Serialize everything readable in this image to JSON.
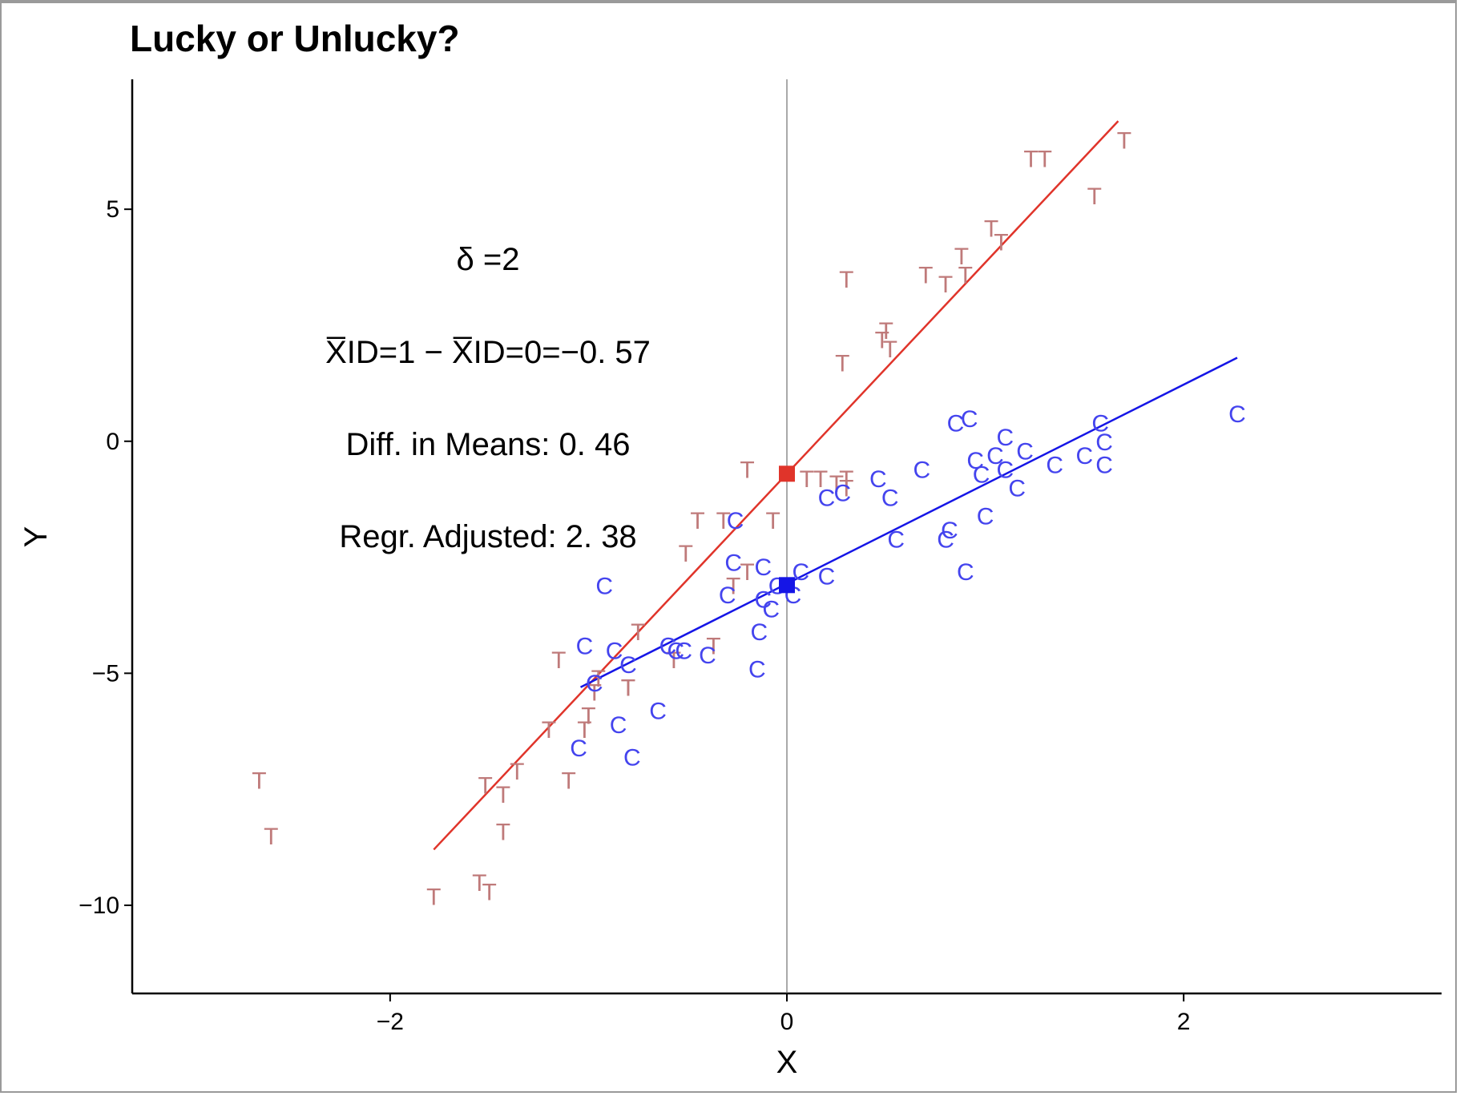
{
  "chart_data": {
    "type": "scatter",
    "title": "Lucky or Unlucky?",
    "xlabel": "X",
    "ylabel": "Y",
    "xlim": [
      -3.3,
      3.3
    ],
    "ylim": [
      -11.9,
      7.8
    ],
    "xticks": [
      -2,
      0,
      2
    ],
    "xtick_labels": [
      "−2",
      "0",
      "2"
    ],
    "yticks": [
      -10,
      -5,
      0,
      5
    ],
    "ytick_labels": [
      "−10",
      "−5",
      "0",
      "5"
    ],
    "grid": false,
    "legend": "none",
    "vline_x": 0,
    "annotations": {
      "delta": "δ =2",
      "mean_diff_x": "X̅ID=1 − X̅ID=0=−0. 57",
      "diff_means": "Diff. in Means: 0. 46",
      "regr_adjusted": "Regr. Adjusted: 2. 38"
    },
    "series": [
      {
        "marker": "T",
        "color": "#bf7a7a",
        "points": [
          [
            -2.66,
            -7.3
          ],
          [
            -2.6,
            -8.5
          ],
          [
            -1.78,
            -9.8
          ],
          [
            -1.55,
            -9.5
          ],
          [
            -1.5,
            -9.7
          ],
          [
            -1.52,
            -7.4
          ],
          [
            -1.43,
            -7.6
          ],
          [
            -1.43,
            -8.4
          ],
          [
            -1.36,
            -7.1
          ],
          [
            -1.2,
            -6.2
          ],
          [
            -1.1,
            -7.3
          ],
          [
            -1.02,
            -6.2
          ],
          [
            -1.0,
            -5.9
          ],
          [
            -0.97,
            -5.4
          ],
          [
            -1.15,
            -4.7
          ],
          [
            -0.95,
            -5.1
          ],
          [
            -0.8,
            -5.3
          ],
          [
            -0.8,
            -5.3
          ],
          [
            -0.75,
            -4.1
          ],
          [
            -0.57,
            -4.7
          ],
          [
            -0.51,
            -2.4
          ],
          [
            -0.45,
            -1.7
          ],
          [
            -0.32,
            -1.7
          ],
          [
            -0.37,
            -4.4
          ],
          [
            -0.27,
            -3.1
          ],
          [
            -0.2,
            -2.8
          ],
          [
            -0.2,
            -0.6
          ],
          [
            -0.07,
            -1.7
          ],
          [
            0.1,
            -0.8
          ],
          [
            0.17,
            -0.8
          ],
          [
            0.25,
            -0.9
          ],
          [
            0.3,
            -1.0
          ],
          [
            0.3,
            3.5
          ],
          [
            0.3,
            -0.8
          ],
          [
            0.28,
            1.7
          ],
          [
            0.48,
            2.2
          ],
          [
            0.5,
            2.4
          ],
          [
            0.52,
            2.0
          ],
          [
            0.7,
            3.6
          ],
          [
            0.8,
            3.4
          ],
          [
            0.88,
            4.0
          ],
          [
            0.9,
            3.6
          ],
          [
            1.03,
            4.6
          ],
          [
            1.08,
            4.3
          ],
          [
            1.23,
            6.1
          ],
          [
            1.3,
            6.1
          ],
          [
            1.55,
            5.3
          ],
          [
            1.7,
            6.5
          ]
        ]
      },
      {
        "marker": "C",
        "color": "#4444ee",
        "points": [
          [
            -0.92,
            -3.1
          ],
          [
            -1.02,
            -4.4
          ],
          [
            -0.87,
            -4.5
          ],
          [
            -0.8,
            -4.8
          ],
          [
            -0.97,
            -5.2
          ],
          [
            -1.05,
            -6.6
          ],
          [
            -0.85,
            -6.1
          ],
          [
            -0.78,
            -6.8
          ],
          [
            -0.65,
            -5.8
          ],
          [
            -0.6,
            -4.4
          ],
          [
            -0.56,
            -4.5
          ],
          [
            -0.52,
            -4.5
          ],
          [
            -0.4,
            -4.6
          ],
          [
            -0.3,
            -3.3
          ],
          [
            -0.26,
            -1.7
          ],
          [
            -0.27,
            -2.6
          ],
          [
            -0.12,
            -2.7
          ],
          [
            -0.15,
            -4.9
          ],
          [
            -0.14,
            -4.1
          ],
          [
            -0.12,
            -3.4
          ],
          [
            -0.08,
            -3.6
          ],
          [
            -0.05,
            -3.1
          ],
          [
            0.03,
            -3.3
          ],
          [
            0.07,
            -2.8
          ],
          [
            0.2,
            -2.9
          ],
          [
            0.2,
            -1.2
          ],
          [
            0.28,
            -1.1
          ],
          [
            0.46,
            -0.8
          ],
          [
            0.52,
            -1.2
          ],
          [
            0.55,
            -2.1
          ],
          [
            0.68,
            -0.6
          ],
          [
            0.8,
            -2.1
          ],
          [
            0.82,
            -1.9
          ],
          [
            0.85,
            0.4
          ],
          [
            0.92,
            0.5
          ],
          [
            0.9,
            -2.8
          ],
          [
            0.95,
            -0.4
          ],
          [
            0.98,
            -0.7
          ],
          [
            1.0,
            -1.6
          ],
          [
            1.05,
            -0.3
          ],
          [
            1.1,
            0.1
          ],
          [
            1.1,
            -0.6
          ],
          [
            1.16,
            -1.0
          ],
          [
            1.2,
            -0.2
          ],
          [
            1.35,
            -0.5
          ],
          [
            1.5,
            -0.3
          ],
          [
            1.58,
            0.4
          ],
          [
            1.6,
            0.0
          ],
          [
            1.6,
            -0.5
          ],
          [
            2.27,
            0.6
          ]
        ]
      }
    ],
    "fit_lines": [
      {
        "color": "#e0342a",
        "x": [
          -1.78,
          1.67
        ],
        "y": [
          -8.8,
          6.9
        ]
      },
      {
        "color": "#1515e6",
        "x": [
          -1.04,
          2.27
        ],
        "y": [
          -5.3,
          1.8
        ]
      }
    ],
    "intercept_points": [
      {
        "color": "#e0342a",
        "x": 0,
        "y": -0.7
      },
      {
        "color": "#1515e6",
        "x": 0,
        "y": -3.1
      }
    ]
  }
}
